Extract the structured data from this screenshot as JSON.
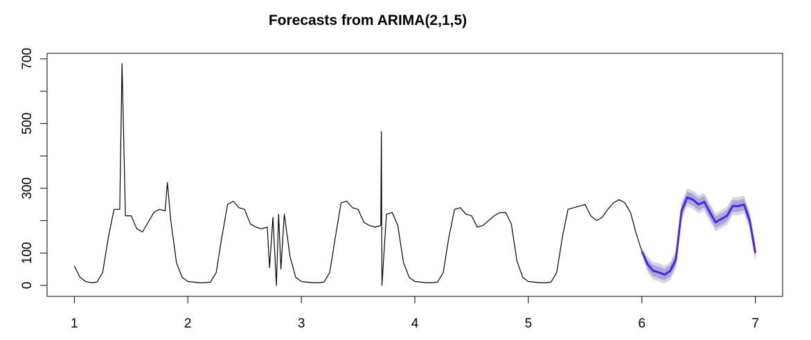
{
  "chart_data": {
    "type": "line",
    "title": "Forecasts from ARIMA(2,1,5)",
    "xlim": [
      0.76,
      7.24
    ],
    "ylim": [
      -34,
      717
    ],
    "xticks": [
      1,
      2,
      3,
      4,
      5,
      6,
      7
    ],
    "yticks": [
      0,
      100,
      300,
      500,
      700
    ],
    "yminor_ticks": [
      200,
      400,
      600
    ],
    "series": [
      {
        "color": "#000000",
        "x": [
          1.0,
          1.05,
          1.1,
          1.15,
          1.2,
          1.25,
          1.3,
          1.35,
          1.4,
          1.42,
          1.45,
          1.5,
          1.55,
          1.6,
          1.65,
          1.7,
          1.75,
          1.8,
          1.82,
          1.85,
          1.9,
          1.95,
          2.0,
          2.05,
          2.1,
          2.15,
          2.2,
          2.25,
          2.3,
          2.35,
          2.4,
          2.45,
          2.5,
          2.55,
          2.6,
          2.65,
          2.7,
          2.72,
          2.75,
          2.78,
          2.8,
          2.82,
          2.85,
          2.9,
          2.95,
          3.0,
          3.05,
          3.1,
          3.15,
          3.2,
          3.25,
          3.3,
          3.35,
          3.4,
          3.45,
          3.5,
          3.55,
          3.6,
          3.65,
          3.7,
          3.705,
          3.71,
          3.75,
          3.8,
          3.85,
          3.9,
          3.95,
          4.0,
          4.05,
          4.1,
          4.15,
          4.2,
          4.25,
          4.3,
          4.35,
          4.4,
          4.45,
          4.5,
          4.55,
          4.6,
          4.65,
          4.7,
          4.75,
          4.8,
          4.85,
          4.9,
          4.95,
          5.0,
          5.05,
          5.1,
          5.15,
          5.2,
          5.25,
          5.3,
          5.35,
          5.4,
          5.45,
          5.5,
          5.55,
          5.6,
          5.65,
          5.7,
          5.75,
          5.8,
          5.85,
          5.9,
          5.95,
          6.0
        ],
        "values": [
          60,
          25,
          12,
          8,
          10,
          40,
          150,
          235,
          235,
          685,
          215,
          215,
          175,
          165,
          195,
          225,
          235,
          230,
          318,
          200,
          70,
          25,
          12,
          10,
          8,
          8,
          10,
          40,
          150,
          250,
          260,
          240,
          235,
          190,
          180,
          175,
          180,
          55,
          210,
          0,
          220,
          50,
          220,
          90,
          25,
          12,
          10,
          8,
          8,
          10,
          40,
          150,
          255,
          260,
          240,
          235,
          195,
          185,
          180,
          185,
          475,
          0,
          220,
          225,
          185,
          70,
          25,
          12,
          10,
          8,
          8,
          10,
          40,
          150,
          235,
          240,
          220,
          215,
          180,
          185,
          200,
          215,
          225,
          225,
          190,
          75,
          25,
          12,
          10,
          8,
          8,
          10,
          40,
          150,
          235,
          240,
          245,
          250,
          215,
          200,
          210,
          235,
          255,
          265,
          255,
          225,
          160,
          105
        ]
      },
      {
        "color": "#4d22f0",
        "x": [
          6.0,
          6.05,
          6.1,
          6.15,
          6.2,
          6.25,
          6.3,
          6.35,
          6.4,
          6.45,
          6.5,
          6.55,
          6.6,
          6.65,
          6.7,
          6.75,
          6.8,
          6.85,
          6.9,
          6.95,
          7.0
        ],
        "values": [
          105,
          65,
          45,
          40,
          33,
          45,
          80,
          230,
          272,
          265,
          250,
          258,
          225,
          195,
          205,
          215,
          245,
          245,
          250,
          200,
          100
        ],
        "lower80": [
          100,
          50,
          28,
          22,
          15,
          27,
          62,
          212,
          254,
          247,
          232,
          240,
          207,
          177,
          187,
          197,
          227,
          227,
          232,
          182,
          82
        ],
        "upper80": [
          110,
          80,
          62,
          58,
          51,
          63,
          98,
          248,
          290,
          283,
          268,
          276,
          243,
          213,
          223,
          233,
          263,
          263,
          268,
          218,
          118
        ],
        "lower95": [
          95,
          40,
          18,
          12,
          5,
          17,
          52,
          202,
          244,
          237,
          222,
          230,
          197,
          167,
          177,
          187,
          217,
          217,
          222,
          172,
          72
        ],
        "upper95": [
          115,
          90,
          72,
          68,
          61,
          73,
          108,
          258,
          300,
          293,
          278,
          286,
          253,
          223,
          233,
          243,
          273,
          273,
          278,
          228,
          128
        ],
        "color80": "#a9a9d4",
        "color95": "#d6d6e6"
      }
    ]
  }
}
